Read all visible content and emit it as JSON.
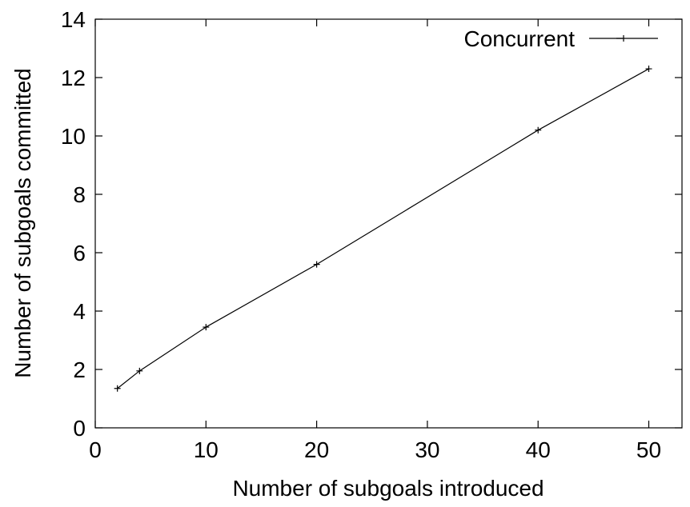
{
  "chart_data": {
    "type": "line",
    "title": "",
    "xlabel": "Number of subgoals introduced",
    "ylabel": "Number of subgoals committed",
    "xlim": [
      0,
      53
    ],
    "ylim": [
      0,
      14
    ],
    "x_ticks": [
      0,
      10,
      20,
      30,
      40,
      50
    ],
    "y_ticks": [
      0,
      2,
      4,
      6,
      8,
      10,
      12,
      14
    ],
    "x_tick_labels": [
      "0",
      "10",
      "20",
      "30",
      "40",
      "50"
    ],
    "y_tick_labels": [
      "0",
      "2",
      "4",
      "6",
      "8",
      "10",
      "12",
      "14"
    ],
    "grid": false,
    "legend_position": "top-right",
    "series": [
      {
        "name": "Concurrent",
        "color": "#000000",
        "marker": "plus",
        "x": [
          2,
          4,
          10,
          20,
          40,
          50
        ],
        "y": [
          1.35,
          1.95,
          3.45,
          5.6,
          10.2,
          12.3
        ]
      }
    ]
  }
}
